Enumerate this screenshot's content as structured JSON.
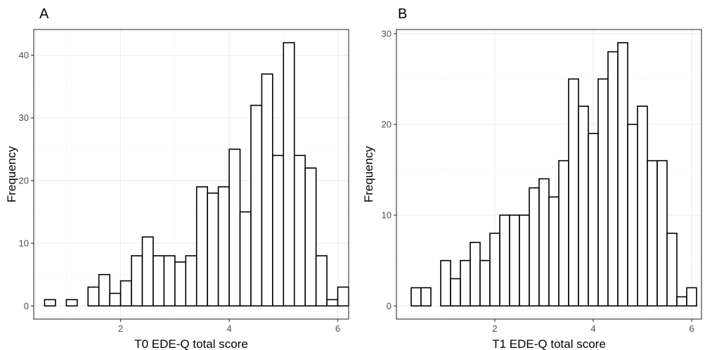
{
  "chart_data": [
    {
      "type": "bar",
      "tag": "A",
      "xlabel": "T0 EDE-Q total score",
      "ylabel": "Frequency",
      "xlim": [
        0.4,
        6.2
      ],
      "ylim": [
        -2.1,
        44.1
      ],
      "x_ticks": [
        2,
        4,
        6
      ],
      "y_ticks": [
        0,
        10,
        20,
        30,
        40
      ],
      "bin_width": 0.2,
      "bin_start": 0.6,
      "values": [
        1,
        0,
        1,
        0,
        3,
        5,
        2,
        4,
        8,
        11,
        8,
        8,
        7,
        8,
        19,
        18,
        19,
        25,
        15,
        32,
        37,
        24,
        42,
        24,
        22,
        8,
        1,
        3
      ],
      "grid": true
    },
    {
      "type": "bar",
      "tag": "B",
      "xlabel": "T1 EDE-Q total score",
      "ylabel": "Frequency",
      "xlim": [
        0.0,
        6.2
      ],
      "ylim": [
        -1.45,
        30.45
      ],
      "x_ticks": [
        2,
        4,
        6
      ],
      "y_ticks": [
        0,
        10,
        20,
        30
      ],
      "bin_width": 0.2,
      "bin_start": 0.3,
      "values": [
        2,
        2,
        0,
        5,
        3,
        5,
        7,
        5,
        8,
        10,
        10,
        10,
        13,
        14,
        12,
        16,
        25,
        22,
        19,
        25,
        28,
        29,
        20,
        22,
        16,
        16,
        8,
        1,
        2
      ],
      "grid": true
    }
  ]
}
